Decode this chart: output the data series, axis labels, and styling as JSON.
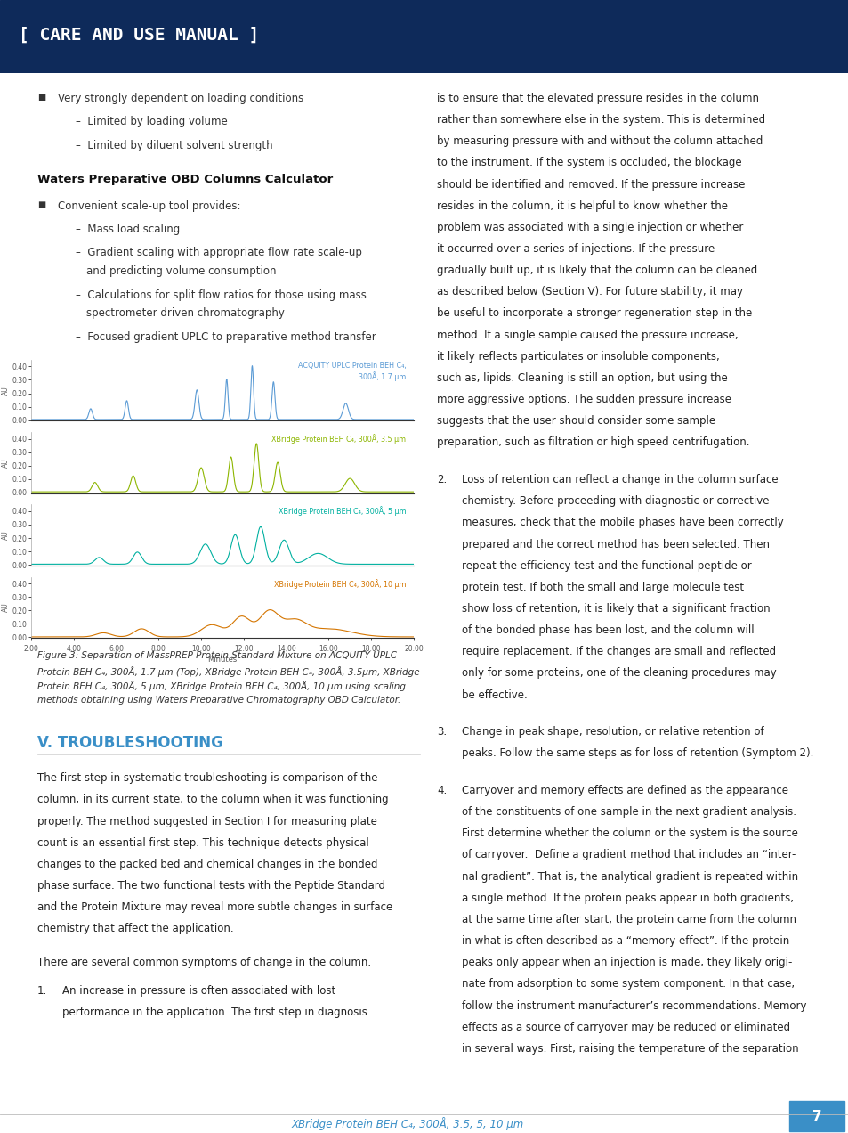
{
  "header_text": "[ CARE AND USE MANUAL ]",
  "header_bg": "#0e2a5a",
  "page_bg": "#ffffff",
  "figure_caption": "Figure 3: Separation of MassPREP Protein Standard Mixture on ACQUITY UPLC\nProtein BEH C₄, 300Å, 1.7 μm (Top), XBridge Protein BEH C₄, 300Å, 3.5μm, XBridge\nProtein BEH C₄, 300Å, 5 μm, XBridge Protein BEH C₄, 300Å, 10 μm using scaling\nmethods obtaining using Waters Preparative Chromatography OBD Calculator.",
  "section_v_title": "V. TROUBLESHOOTING",
  "section_v_color": "#3a8fc7",
  "footer_text": "XBridge Protein BEH C₄, 300Å, 3.5, 5, 10 μm",
  "footer_page": "7",
  "footer_color": "#3a8fc7",
  "chromatogram_colors": [
    "#5b9bd5",
    "#8db600",
    "#00b0a0",
    "#d47500"
  ],
  "chromatogram_labels": [
    "ACQUITY UPLC Protein BEH C₄,\n300Å, 1.7 μm",
    "XBridge Protein BEH C₄, 300Å, 3.5 μm",
    "XBridge Protein BEH C₄, 300Å, 5 μm",
    "XBridge Protein BEH C₄, 300Å, 10 μm"
  ],
  "chromatogram_label_colors": [
    "#5b9bd5",
    "#8db600",
    "#00b0a0",
    "#d47500"
  ],
  "text_color": "#333333",
  "text_color2": "#222222"
}
